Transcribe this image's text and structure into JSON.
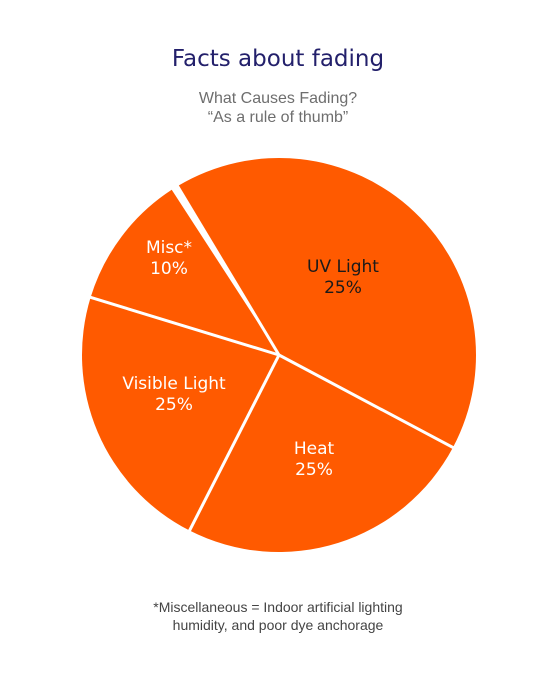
{
  "title": "Facts about fading",
  "subtitle": {
    "line1": "What Causes Fading?",
    "line2": "“As a rule of thumb”"
  },
  "chart_data": {
    "type": "pie",
    "title": "Facts about fading",
    "slices": [
      {
        "label": "UV Light",
        "value_label": "25%",
        "value": 25,
        "label_color": "#1a1a1a"
      },
      {
        "label": "Heat",
        "value_label": "25%",
        "value": 25,
        "label_color": "#ffffff"
      },
      {
        "label": "Visible Light",
        "value_label": "25%",
        "value": 25,
        "label_color": "#ffffff"
      },
      {
        "label": "Misc*",
        "value_label": "10%",
        "value": 10,
        "label_color": "#ffffff"
      }
    ],
    "slice_color": "#ff5a00",
    "separator_color": "#ffffff"
  },
  "footnote": {
    "line1": "*Miscellaneous = Indoor artificial lighting",
    "line2": "humidity, and poor dye anchorage"
  }
}
